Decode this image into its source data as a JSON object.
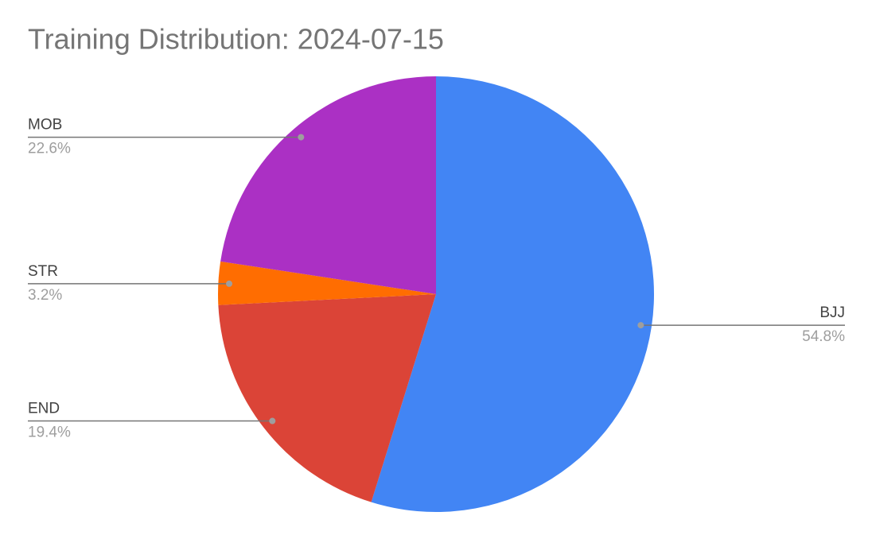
{
  "chart_data": {
    "type": "pie",
    "title": "Training Distribution: 2024-07-15",
    "categories": [
      "BJJ",
      "END",
      "STR",
      "MOB"
    ],
    "values": [
      54.8,
      19.4,
      3.2,
      22.6
    ],
    "value_labels": [
      "54.8%",
      "19.4%",
      "3.2%",
      "22.6%"
    ],
    "colors": [
      "#4285f4",
      "#db4437",
      "#ff6d01",
      "#ab30c4"
    ]
  }
}
